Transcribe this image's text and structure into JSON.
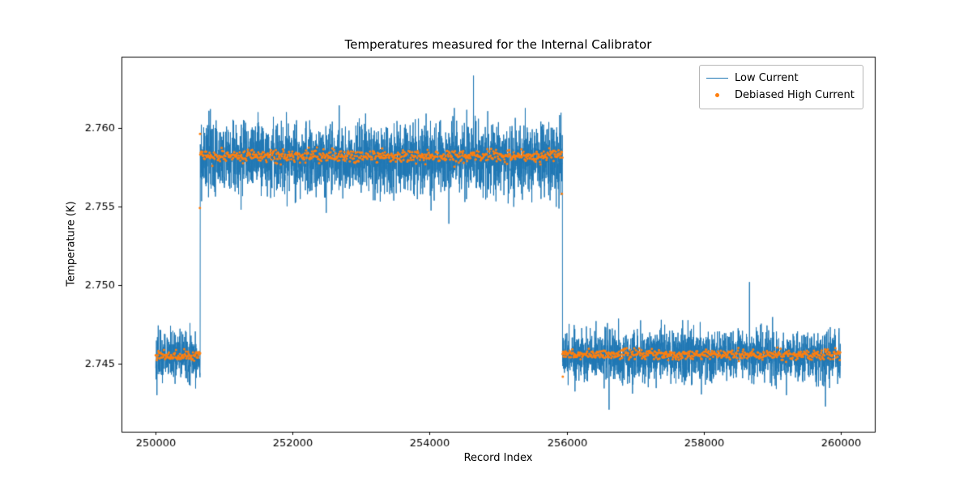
{
  "chart_data": {
    "type": "line",
    "title": "Temperatures measured for the Internal Calibrator",
    "xlabel": "Record Index",
    "ylabel": "Temperature (K)",
    "xlim": [
      249500,
      260500
    ],
    "ylim": [
      2.7407,
      2.7645
    ],
    "xticks": [
      250000,
      252000,
      254000,
      256000,
      258000,
      260000
    ],
    "yticks": [
      2.745,
      2.75,
      2.755,
      2.76
    ],
    "grid": false,
    "legend_position": "upper right",
    "legend": [
      {
        "label": "Low Current",
        "color": "#1f77b4",
        "sample": "line"
      },
      {
        "label": "Debiased High Current",
        "color": "#ff7f0e",
        "sample": "dot"
      }
    ],
    "series": [
      {
        "name": "Low Current",
        "color": "#1f77b4",
        "style": "noisy-line",
        "line_width": 1.0,
        "sample_step": 2,
        "segments": [
          {
            "x_start": 250000,
            "x_end": 250650,
            "mean": 2.7455,
            "std": 0.0008
          },
          {
            "x_start": 250650,
            "x_end": 255940,
            "mean": 2.758,
            "std": 0.0011
          },
          {
            "x_start": 255940,
            "x_end": 260000,
            "mean": 2.7455,
            "std": 0.0008
          }
        ],
        "spikes": [
          {
            "x": 254640,
            "y": 2.7633
          },
          {
            "x": 254280,
            "y": 2.7539
          },
          {
            "x": 258670,
            "y": 2.7502
          },
          {
            "x": 256620,
            "y": 2.7421
          },
          {
            "x": 259780,
            "y": 2.7423
          }
        ]
      },
      {
        "name": "Debiased High Current",
        "color": "#ff7f0e",
        "style": "dots",
        "marker_size": 1.5,
        "sample_step": 8,
        "segments": [
          {
            "x_start": 250000,
            "x_end": 250650,
            "mean": 2.7455,
            "std": 0.00016
          },
          {
            "x_start": 250650,
            "x_end": 255940,
            "mean": 2.7582,
            "std": 0.0002
          },
          {
            "x_start": 255940,
            "x_end": 260000,
            "mean": 2.7456,
            "std": 0.00016
          }
        ],
        "outliers": [
          {
            "x": 250648,
            "y": 2.7596
          },
          {
            "x": 250645,
            "y": 2.7549
          },
          {
            "x": 255930,
            "y": 2.7558
          },
          {
            "x": 255944,
            "y": 2.7442
          }
        ]
      }
    ]
  }
}
